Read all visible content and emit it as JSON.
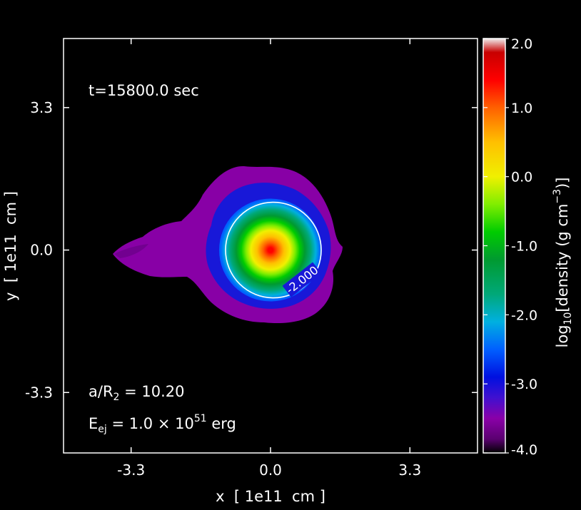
{
  "chart_data": {
    "type": "heatmap",
    "title": "",
    "xlabel": "x  [ 1e11  cm ]",
    "ylabel": "y  [ 1e11  cm ]",
    "xlim": [
      -4.9,
      4.9
    ],
    "ylim": [
      -4.7,
      4.9
    ],
    "x_ticks": [
      -3.3,
      0.0,
      3.3
    ],
    "x_tick_labels": [
      "-3.3",
      "0.0",
      "3.3"
    ],
    "y_ticks": [
      -3.3,
      0.0,
      3.3
    ],
    "y_tick_labels": [
      "-3.3",
      "0.0",
      "3.3"
    ],
    "annotations": {
      "time": "t=15800.0 sec",
      "separation_lhs": "a/R",
      "separation_sub": "2",
      "separation_rhs": " = 10.20",
      "energy_lhs": "E",
      "energy_sub": "ej",
      "energy_mid": " = 1.0 × 10",
      "energy_exp": "51",
      "energy_unit": " erg"
    },
    "contour": {
      "level": -2.0,
      "label": "-2.000",
      "radius": 1.1,
      "color": "#ffffff"
    },
    "field": {
      "center_x": 0.0,
      "center_y": 0.0,
      "peak_log_density": 1.6,
      "colored_core_radius": 1.7,
      "min_visible_log_density": -3.9
    },
    "colorbar": {
      "range": [
        -4.0,
        2.0
      ],
      "ticks": [
        2.0,
        1.0,
        0.0,
        -1.0,
        -2.0,
        -3.0,
        -4.0
      ],
      "tick_labels": [
        "2.0",
        "1.0",
        "0.0",
        "-1.0",
        "-2.0",
        "-3.0",
        "-4.0"
      ],
      "label_main": "log",
      "label_sub": "10",
      "label_rest": "[density (g cm",
      "label_exp": "−3",
      "label_close": ")]",
      "colors": [
        {
          "v": -4.0,
          "c": "#000000"
        },
        {
          "v": -3.8,
          "c": "#5a0070"
        },
        {
          "v": -3.5,
          "c": "#8a00a8"
        },
        {
          "v": -3.2,
          "c": "#4010d0"
        },
        {
          "v": -2.9,
          "c": "#0010e0"
        },
        {
          "v": -2.5,
          "c": "#0060ff"
        },
        {
          "v": -2.1,
          "c": "#00b0e0"
        },
        {
          "v": -1.7,
          "c": "#00a878"
        },
        {
          "v": -1.2,
          "c": "#009a30"
        },
        {
          "v": -0.8,
          "c": "#00cc00"
        },
        {
          "v": -0.4,
          "c": "#80ee00"
        },
        {
          "v": 0.0,
          "c": "#f0f000"
        },
        {
          "v": 0.5,
          "c": "#ffc000"
        },
        {
          "v": 1.0,
          "c": "#ff6000"
        },
        {
          "v": 1.4,
          "c": "#ff0000"
        },
        {
          "v": 1.8,
          "c": "#c80000"
        },
        {
          "v": 2.0,
          "c": "#f0f0f0"
        }
      ]
    }
  }
}
